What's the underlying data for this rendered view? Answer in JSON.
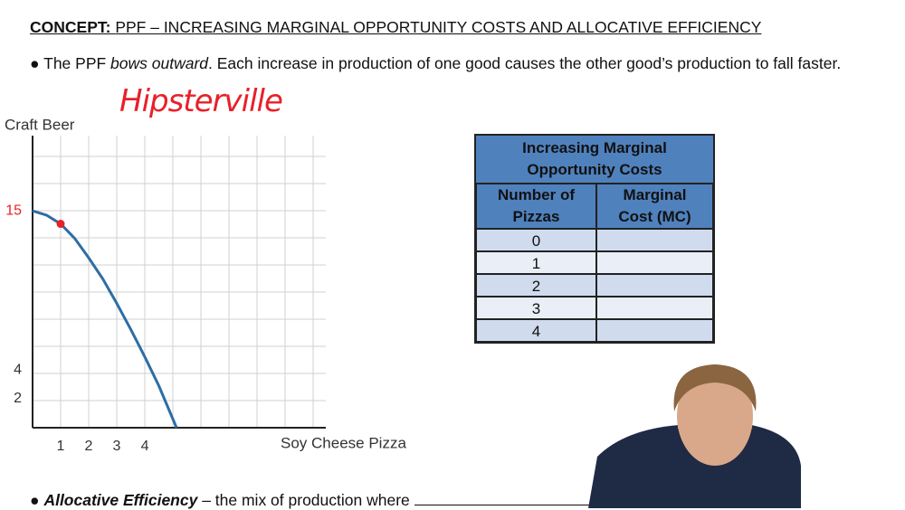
{
  "header": {
    "label": "CONCEPT:",
    "title": "PPF – INCREASING MARGINAL OPPORTUNITY COSTS AND ALLOCATIVE EFFICIENCY"
  },
  "bullets": [
    {
      "parts": [
        "The PPF ",
        "bows outward",
        ". Each increase in production of one good causes the other good’s production to fall faster."
      ]
    },
    {
      "parts": [
        "Allocative Efficiency",
        " – the mix of production where"
      ]
    }
  ],
  "annotation": "Hipsterville",
  "chart": {
    "type": "line",
    "y_label": "Craft Beer",
    "x_label": "Soy Cheese Pizza",
    "x": [
      0,
      0.5,
      1,
      1.5,
      2,
      2.5,
      3,
      3.5,
      4,
      4.5,
      5.13
    ],
    "values": [
      15,
      14.7,
      14.1,
      13.1,
      11.75,
      10.3,
      8.6,
      6.8,
      4.9,
      2.9,
      0
    ],
    "color": "#2e6da4",
    "point": {
      "x": 1,
      "y": 14.1,
      "color": "#e8202a"
    },
    "xlim": [
      0,
      10.45
    ],
    "ylim": [
      0,
      20.2
    ],
    "xticks": [
      1,
      2,
      3,
      4
    ],
    "yticks": [
      2,
      4,
      15
    ],
    "ytick_colors": [
      "#333333",
      "#333333",
      "#e8202a"
    ]
  },
  "table": {
    "title": "Increasing Marginal Opportunity Costs",
    "columns": [
      "Number of Pizzas",
      "Marginal Cost (MC)"
    ],
    "rows": [
      [
        0
      ],
      [
        1
      ],
      [
        2
      ],
      [
        3
      ],
      [
        4
      ]
    ]
  }
}
